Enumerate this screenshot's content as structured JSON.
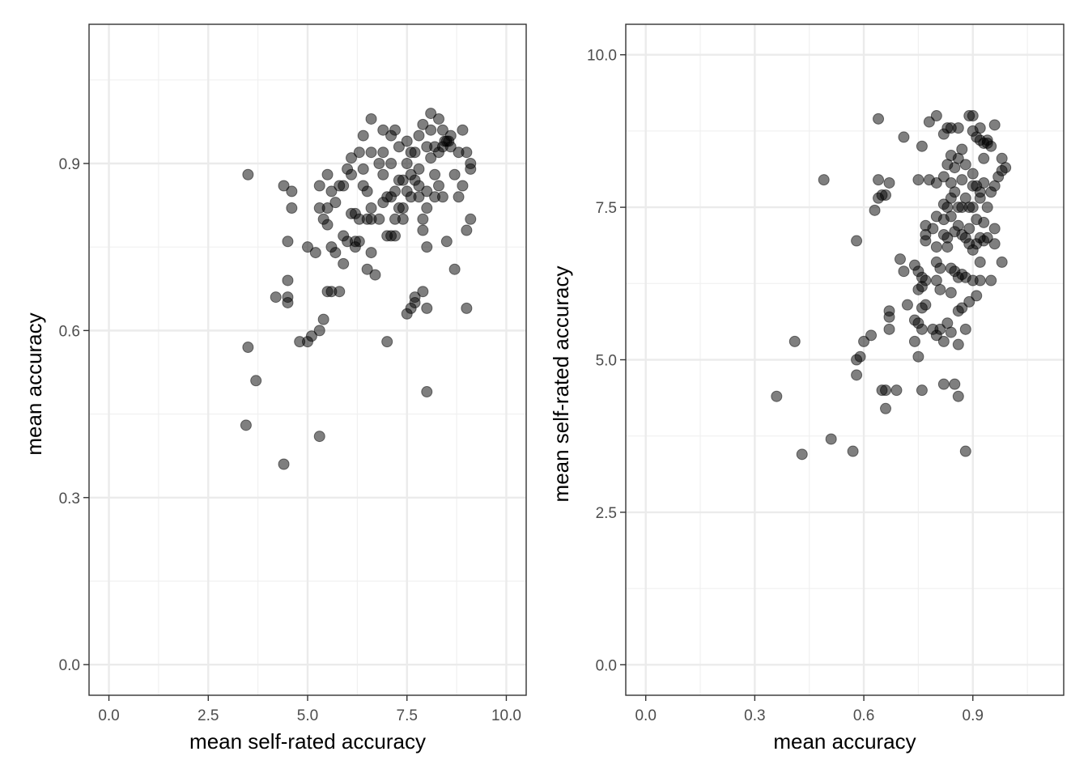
{
  "chart_data": [
    {
      "type": "scatter",
      "xlabel": "mean self-rated accuracy",
      "ylabel": "mean accuracy",
      "xlim": [
        -0.5,
        10.5
      ],
      "ylim": [
        -0.055,
        1.15
      ],
      "xticks": [
        "0.0",
        "2.5",
        "5.0",
        "7.5",
        "10.0"
      ],
      "yticks": [
        "0.0",
        "0.3",
        "0.6",
        "0.9"
      ],
      "grid": true,
      "point_color": "#000000",
      "points": [
        [
          3.5,
          0.88
        ],
        [
          3.5,
          0.57
        ],
        [
          3.45,
          0.43
        ],
        [
          3.7,
          0.51
        ],
        [
          4.2,
          0.66
        ],
        [
          4.4,
          0.86
        ],
        [
          4.4,
          0.36
        ],
        [
          4.5,
          0.76
        ],
        [
          4.5,
          0.69
        ],
        [
          4.5,
          0.66
        ],
        [
          4.5,
          0.65
        ],
        [
          4.6,
          0.85
        ],
        [
          4.6,
          0.82
        ],
        [
          4.8,
          0.58
        ],
        [
          5.0,
          0.58
        ],
        [
          5.0,
          0.75
        ],
        [
          5.1,
          0.59
        ],
        [
          5.2,
          0.74
        ],
        [
          5.3,
          0.86
        ],
        [
          5.3,
          0.82
        ],
        [
          5.3,
          0.6
        ],
        [
          5.3,
          0.41
        ],
        [
          5.4,
          0.62
        ],
        [
          5.4,
          0.8
        ],
        [
          5.5,
          0.88
        ],
        [
          5.5,
          0.82
        ],
        [
          5.5,
          0.79
        ],
        [
          5.5,
          0.67
        ],
        [
          5.6,
          0.75
        ],
        [
          5.6,
          0.85
        ],
        [
          5.6,
          0.67
        ],
        [
          5.7,
          0.74
        ],
        [
          5.7,
          0.83
        ],
        [
          5.8,
          0.86
        ],
        [
          5.8,
          0.67
        ],
        [
          5.9,
          0.86
        ],
        [
          5.9,
          0.77
        ],
        [
          5.9,
          0.72
        ],
        [
          6.0,
          0.89
        ],
        [
          6.0,
          0.76
        ],
        [
          6.1,
          0.91
        ],
        [
          6.1,
          0.81
        ],
        [
          6.2,
          0.81
        ],
        [
          6.2,
          0.76
        ],
        [
          6.2,
          0.75
        ],
        [
          6.3,
          0.92
        ],
        [
          6.3,
          0.8
        ],
        [
          6.3,
          0.76
        ],
        [
          6.4,
          0.95
        ],
        [
          6.4,
          0.89
        ],
        [
          6.4,
          0.86
        ],
        [
          6.5,
          0.85
        ],
        [
          6.5,
          0.8
        ],
        [
          6.5,
          0.71
        ],
        [
          6.6,
          0.98
        ],
        [
          6.6,
          0.92
        ],
        [
          6.6,
          0.82
        ],
        [
          6.6,
          0.8
        ],
        [
          6.6,
          0.74
        ],
        [
          6.7,
          0.7
        ],
        [
          6.8,
          0.9
        ],
        [
          6.8,
          0.8
        ],
        [
          6.9,
          0.96
        ],
        [
          6.9,
          0.92
        ],
        [
          6.9,
          0.88
        ],
        [
          7.0,
          0.84
        ],
        [
          7.0,
          0.77
        ],
        [
          7.0,
          0.58
        ],
        [
          7.1,
          0.95
        ],
        [
          7.1,
          0.9
        ],
        [
          7.1,
          0.84
        ],
        [
          7.1,
          0.77
        ],
        [
          7.2,
          0.96
        ],
        [
          7.2,
          0.85
        ],
        [
          7.2,
          0.8
        ],
        [
          7.2,
          0.77
        ],
        [
          7.3,
          0.93
        ],
        [
          7.3,
          0.82
        ],
        [
          7.4,
          0.87
        ],
        [
          7.4,
          0.82
        ],
        [
          7.4,
          0.8
        ],
        [
          7.5,
          0.94
        ],
        [
          7.5,
          0.9
        ],
        [
          7.5,
          0.85
        ],
        [
          7.5,
          0.63
        ],
        [
          7.6,
          0.92
        ],
        [
          7.6,
          0.88
        ],
        [
          7.6,
          0.64
        ],
        [
          7.7,
          0.92
        ],
        [
          7.7,
          0.65
        ],
        [
          7.7,
          0.66
        ],
        [
          7.8,
          0.95
        ],
        [
          7.8,
          0.89
        ],
        [
          7.8,
          0.86
        ],
        [
          7.8,
          0.84
        ],
        [
          7.9,
          0.97
        ],
        [
          7.9,
          0.8
        ],
        [
          7.9,
          0.78
        ],
        [
          7.9,
          0.67
        ],
        [
          8.0,
          0.93
        ],
        [
          8.0,
          0.85
        ],
        [
          8.0,
          0.82
        ],
        [
          8.0,
          0.75
        ],
        [
          8.0,
          0.64
        ],
        [
          8.0,
          0.49
        ],
        [
          8.1,
          0.99
        ],
        [
          8.1,
          0.96
        ],
        [
          8.2,
          0.88
        ],
        [
          8.2,
          0.84
        ],
        [
          8.3,
          0.98
        ],
        [
          8.3,
          0.86
        ],
        [
          8.4,
          0.96
        ],
        [
          8.4,
          0.93
        ],
        [
          8.4,
          0.84
        ],
        [
          8.5,
          0.94
        ],
        [
          8.5,
          0.76
        ],
        [
          8.6,
          0.95
        ],
        [
          8.6,
          0.93
        ],
        [
          8.7,
          0.88
        ],
        [
          8.7,
          0.71
        ],
        [
          8.8,
          0.92
        ],
        [
          8.8,
          0.84
        ],
        [
          8.9,
          0.96
        ],
        [
          8.9,
          0.86
        ],
        [
          9.0,
          0.92
        ],
        [
          9.0,
          0.78
        ],
        [
          9.0,
          0.64
        ],
        [
          9.1,
          0.9
        ],
        [
          9.1,
          0.89
        ],
        [
          9.1,
          0.8
        ],
        [
          8.3,
          0.92
        ],
        [
          7.6,
          0.84
        ],
        [
          6.9,
          0.83
        ],
        [
          7.3,
          0.87
        ],
        [
          8.1,
          0.91
        ],
        [
          6.1,
          0.88
        ],
        [
          7.7,
          0.87
        ],
        [
          8.55,
          0.94
        ],
        [
          8.45,
          0.94
        ],
        [
          8.2,
          0.93
        ]
      ]
    },
    {
      "type": "scatter",
      "xlabel": "mean accuracy",
      "ylabel": "mean self-rated accuracy",
      "xlim": [
        -0.055,
        1.15
      ],
      "ylim": [
        -0.5,
        10.5
      ],
      "xticks": [
        "0.0",
        "0.3",
        "0.6",
        "0.9"
      ],
      "yticks": [
        "0.0",
        "2.5",
        "5.0",
        "7.5",
        "10.0"
      ],
      "grid": true,
      "point_color": "#000000",
      "points": [
        [
          0.36,
          4.4
        ],
        [
          0.41,
          5.3
        ],
        [
          0.43,
          3.45
        ],
        [
          0.49,
          7.95
        ],
        [
          0.51,
          3.7
        ],
        [
          0.57,
          3.5
        ],
        [
          0.58,
          6.95
        ],
        [
          0.58,
          5.0
        ],
        [
          0.58,
          4.75
        ],
        [
          0.59,
          5.05
        ],
        [
          0.6,
          5.3
        ],
        [
          0.62,
          5.4
        ],
        [
          0.63,
          7.45
        ],
        [
          0.64,
          8.95
        ],
        [
          0.64,
          7.95
        ],
        [
          0.64,
          7.65
        ],
        [
          0.65,
          7.7
        ],
        [
          0.65,
          4.5
        ],
        [
          0.66,
          7.7
        ],
        [
          0.66,
          4.2
        ],
        [
          0.66,
          4.5
        ],
        [
          0.67,
          7.9
        ],
        [
          0.67,
          5.8
        ],
        [
          0.67,
          5.7
        ],
        [
          0.67,
          5.5
        ],
        [
          0.69,
          4.5
        ],
        [
          0.7,
          6.65
        ],
        [
          0.71,
          8.65
        ],
        [
          0.71,
          6.45
        ],
        [
          0.72,
          5.9
        ],
        [
          0.74,
          6.55
        ],
        [
          0.74,
          5.65
        ],
        [
          0.74,
          5.3
        ],
        [
          0.75,
          7.95
        ],
        [
          0.75,
          6.45
        ],
        [
          0.75,
          6.15
        ],
        [
          0.75,
          5.05
        ],
        [
          0.75,
          5.6
        ],
        [
          0.76,
          8.5
        ],
        [
          0.76,
          6.35
        ],
        [
          0.76,
          6.2
        ],
        [
          0.76,
          5.85
        ],
        [
          0.76,
          5.5
        ],
        [
          0.76,
          4.5
        ],
        [
          0.77,
          7.2
        ],
        [
          0.77,
          7.05
        ],
        [
          0.77,
          6.95
        ],
        [
          0.77,
          6.3
        ],
        [
          0.77,
          5.9
        ],
        [
          0.78,
          8.9
        ],
        [
          0.78,
          7.95
        ],
        [
          0.79,
          7.15
        ],
        [
          0.79,
          5.5
        ],
        [
          0.8,
          9.0
        ],
        [
          0.8,
          7.9
        ],
        [
          0.8,
          7.35
        ],
        [
          0.8,
          6.85
        ],
        [
          0.8,
          6.6
        ],
        [
          0.8,
          6.3
        ],
        [
          0.8,
          5.4
        ],
        [
          0.81,
          6.5
        ],
        [
          0.81,
          6.15
        ],
        [
          0.81,
          5.5
        ],
        [
          0.82,
          8.7
        ],
        [
          0.82,
          8.0
        ],
        [
          0.82,
          7.55
        ],
        [
          0.82,
          7.3
        ],
        [
          0.82,
          7.05
        ],
        [
          0.82,
          5.3
        ],
        [
          0.82,
          4.6
        ],
        [
          0.83,
          8.8
        ],
        [
          0.83,
          8.2
        ],
        [
          0.83,
          7.5
        ],
        [
          0.83,
          7.0
        ],
        [
          0.83,
          6.85
        ],
        [
          0.83,
          5.6
        ],
        [
          0.84,
          8.8
        ],
        [
          0.84,
          8.35
        ],
        [
          0.84,
          7.9
        ],
        [
          0.84,
          7.65
        ],
        [
          0.84,
          7.35
        ],
        [
          0.84,
          6.5
        ],
        [
          0.84,
          6.1
        ],
        [
          0.84,
          5.45
        ],
        [
          0.85,
          8.15
        ],
        [
          0.85,
          7.75
        ],
        [
          0.85,
          7.1
        ],
        [
          0.85,
          6.45
        ],
        [
          0.85,
          4.6
        ],
        [
          0.86,
          8.8
        ],
        [
          0.86,
          8.3
        ],
        [
          0.86,
          7.5
        ],
        [
          0.86,
          7.2
        ],
        [
          0.86,
          6.35
        ],
        [
          0.86,
          5.8
        ],
        [
          0.86,
          5.25
        ],
        [
          0.86,
          4.4
        ],
        [
          0.87,
          8.45
        ],
        [
          0.87,
          7.95
        ],
        [
          0.87,
          7.5
        ],
        [
          0.87,
          7.05
        ],
        [
          0.87,
          6.4
        ],
        [
          0.87,
          5.85
        ],
        [
          0.88,
          8.2
        ],
        [
          0.88,
          7.65
        ],
        [
          0.88,
          7.0
        ],
        [
          0.88,
          6.35
        ],
        [
          0.88,
          5.5
        ],
        [
          0.88,
          3.5
        ],
        [
          0.89,
          9.0
        ],
        [
          0.89,
          7.5
        ],
        [
          0.89,
          7.15
        ],
        [
          0.89,
          6.9
        ],
        [
          0.89,
          5.95
        ],
        [
          0.9,
          9.0
        ],
        [
          0.9,
          7.85
        ],
        [
          0.9,
          7.5
        ],
        [
          0.9,
          6.8
        ],
        [
          0.9,
          6.3
        ],
        [
          0.91,
          8.65
        ],
        [
          0.91,
          7.85
        ],
        [
          0.91,
          7.3
        ],
        [
          0.91,
          6.9
        ],
        [
          0.91,
          6.05
        ],
        [
          0.92,
          8.8
        ],
        [
          0.92,
          8.6
        ],
        [
          0.92,
          7.65
        ],
        [
          0.92,
          7.0
        ],
        [
          0.92,
          6.6
        ],
        [
          0.92,
          6.3
        ],
        [
          0.93,
          8.3
        ],
        [
          0.93,
          7.9
        ],
        [
          0.93,
          7.25
        ],
        [
          0.93,
          6.95
        ],
        [
          0.94,
          8.55
        ],
        [
          0.94,
          7.5
        ],
        [
          0.94,
          7.0
        ],
        [
          0.95,
          8.5
        ],
        [
          0.95,
          7.75
        ],
        [
          0.95,
          6.3
        ],
        [
          0.96,
          8.85
        ],
        [
          0.96,
          7.85
        ],
        [
          0.96,
          7.15
        ],
        [
          0.96,
          6.9
        ],
        [
          0.97,
          8.0
        ],
        [
          0.98,
          8.3
        ],
        [
          0.98,
          8.1
        ],
        [
          0.98,
          6.6
        ],
        [
          0.99,
          8.15
        ],
        [
          0.92,
          7.75
        ],
        [
          0.94,
          8.6
        ],
        [
          0.93,
          8.55
        ],
        [
          0.9,
          8.75
        ],
        [
          0.9,
          8.05
        ]
      ]
    }
  ]
}
